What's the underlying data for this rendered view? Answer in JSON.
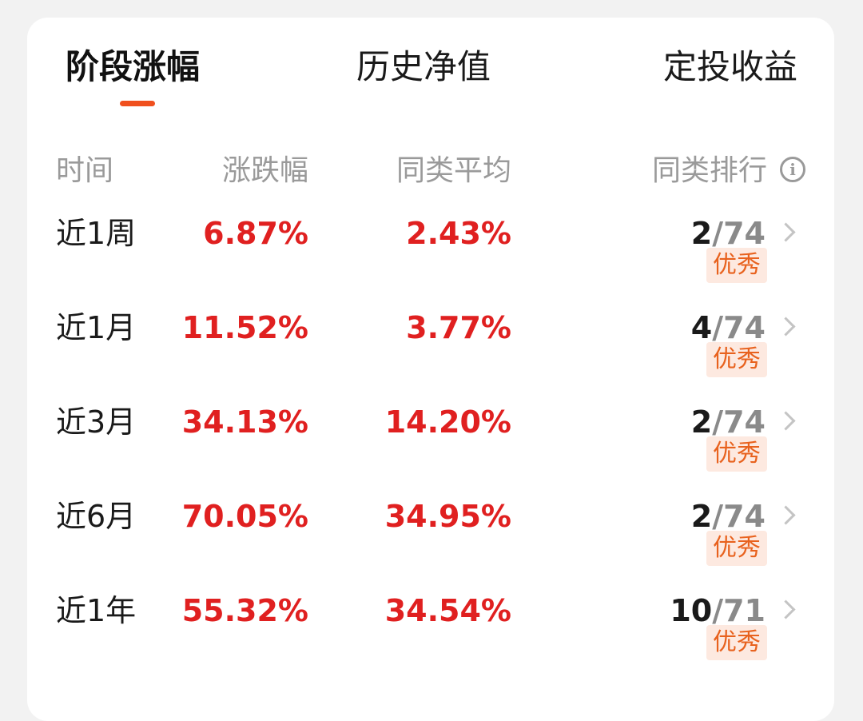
{
  "tabs": [
    {
      "label": "阶段涨幅",
      "active": true
    },
    {
      "label": "历史净值",
      "active": false
    },
    {
      "label": "定投收益",
      "active": false
    }
  ],
  "accent_color": "#f0501e",
  "table": {
    "headers": {
      "time": "时间",
      "change": "涨跌幅",
      "category_avg": "同类平均",
      "category_rank": "同类排行",
      "info_icon": "info-circle-icon"
    },
    "rows": [
      {
        "period": "近1周",
        "change": "6.87%",
        "category_avg": "2.43%",
        "rank": "2",
        "rank_sep": "/",
        "total": "74",
        "badge": "优秀"
      },
      {
        "period": "近1月",
        "change": "11.52%",
        "category_avg": "3.77%",
        "rank": "4",
        "rank_sep": "/",
        "total": "74",
        "badge": "优秀"
      },
      {
        "period": "近3月",
        "change": "34.13%",
        "category_avg": "14.20%",
        "rank": "2",
        "rank_sep": "/",
        "total": "74",
        "badge": "优秀"
      },
      {
        "period": "近6月",
        "change": "70.05%",
        "category_avg": "34.95%",
        "rank": "2",
        "rank_sep": "/",
        "total": "74",
        "badge": "优秀"
      },
      {
        "period": "近1年",
        "change": "55.32%",
        "category_avg": "34.54%",
        "rank": "10",
        "rank_sep": "/",
        "total": "71",
        "badge": "优秀"
      }
    ]
  },
  "colors": {
    "positive": "#e02020",
    "badge_text": "#e8621e",
    "badge_bg": "#fde9e0"
  }
}
